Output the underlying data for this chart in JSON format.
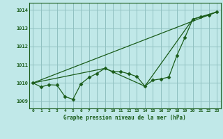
{
  "title": "Graphe pression niveau de la mer (hPa)",
  "background_color": "#c0e8e8",
  "grid_color": "#90c0c0",
  "line_color": "#1a5c1a",
  "marker_color": "#1a5c1a",
  "xlim": [
    -0.5,
    23.5
  ],
  "ylim": [
    1008.6,
    1014.4
  ],
  "yticks": [
    1009,
    1010,
    1011,
    1012,
    1013,
    1014
  ],
  "xticks": [
    0,
    1,
    2,
    3,
    4,
    5,
    6,
    7,
    8,
    9,
    10,
    11,
    12,
    13,
    14,
    15,
    16,
    17,
    18,
    19,
    20,
    21,
    22,
    23
  ],
  "series1_x": [
    0,
    1,
    2,
    3,
    4,
    5,
    6,
    7,
    8,
    9,
    10,
    11,
    12,
    13,
    14,
    15,
    16,
    17,
    18,
    19,
    20,
    21,
    22,
    23
  ],
  "series1_y": [
    1010.0,
    1009.78,
    1009.9,
    1009.88,
    1009.25,
    1009.1,
    1009.95,
    1010.3,
    1010.52,
    1010.8,
    1010.62,
    1010.62,
    1010.5,
    1010.35,
    1009.82,
    1010.15,
    1010.22,
    1010.32,
    1011.5,
    1012.48,
    1013.5,
    1013.62,
    1013.72,
    1013.9
  ],
  "series2_x": [
    0,
    23
  ],
  "series2_y": [
    1010.0,
    1013.9
  ],
  "series3_x": [
    0,
    9,
    14,
    20,
    23
  ],
  "series3_y": [
    1010.0,
    1010.8,
    1009.82,
    1013.5,
    1013.9
  ]
}
